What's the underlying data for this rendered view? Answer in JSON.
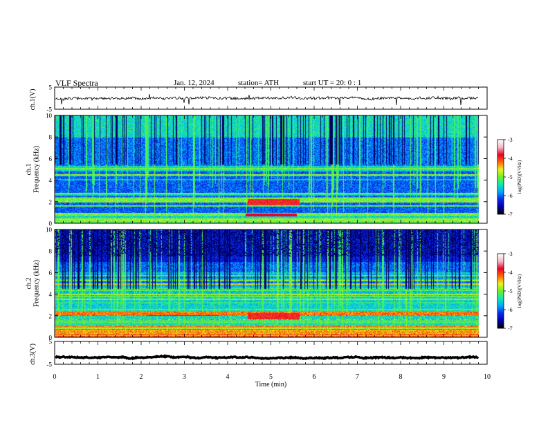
{
  "header": {
    "title": "VLF  Spectra",
    "date": "Jan. 12, 2024",
    "station": "station= ATH",
    "start": "start  UT  =    20: 0  : 1"
  },
  "colors": {
    "colormap": [
      "#000000",
      "#0000aa",
      "#0a2af0",
      "#00a8ff",
      "#14e8b0",
      "#6cf02a",
      "#f0f020",
      "#ff6a00",
      "#e8002a",
      "#f4b8c4",
      "#ffffff"
    ]
  },
  "chart_data": [
    {
      "type": "line",
      "panel": "ch1",
      "ylabel": "ch.1(V)",
      "ylim": [
        -5,
        5
      ],
      "yticks": [
        "5",
        "-5"
      ],
      "xlim": [
        0,
        10
      ],
      "baseline_v": 0.0
    },
    {
      "type": "heatmap",
      "panel": "ch1-spectrogram",
      "ylabel": "ch.1\nFrequency  (kHz)",
      "ylim": [
        0,
        10
      ],
      "yticks": [
        "0",
        "2",
        "4",
        "6",
        "8",
        "10"
      ],
      "xlim": [
        0,
        10
      ],
      "data_end_min": 9.8,
      "colorbar": {
        "label": "log(PSD)(V²/Hz)",
        "range": [
          -7,
          -3
        ],
        "ticks": [
          "-3",
          "-4",
          "-5",
          "-6",
          "-7"
        ]
      }
    },
    {
      "type": "heatmap",
      "panel": "ch2-spectrogram",
      "ylabel": "ch.2\nFrequency  (kHz)",
      "ylim": [
        0,
        10
      ],
      "yticks": [
        "0",
        "2",
        "4",
        "6",
        "8",
        "10"
      ],
      "xlim": [
        0,
        10
      ],
      "data_end_min": 9.8,
      "colorbar": {
        "label": "log(PSD)(V²/Hz)",
        "range": [
          -7,
          -3
        ],
        "ticks": [
          "-3",
          "-4",
          "-5",
          "-6",
          "-7"
        ]
      }
    },
    {
      "type": "line",
      "panel": "ch3",
      "ylabel": "ch.3(V)",
      "ylim": [
        -5,
        5
      ],
      "yticks": [
        "5",
        "-5"
      ],
      "xlim": [
        0,
        10
      ],
      "baseline_v": -2.0,
      "xlabel": "Time  (min)",
      "xticks": [
        "0",
        "1",
        "2",
        "3",
        "4",
        "5",
        "6",
        "7",
        "8",
        "9",
        "10"
      ]
    }
  ]
}
